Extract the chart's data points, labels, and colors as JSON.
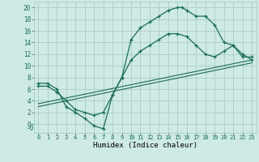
{
  "xlabel": "Humidex (Indice chaleur)",
  "bg_color": "#ceeae4",
  "grid_color": "#aaccC4",
  "line_color": "#1a6b5a",
  "xlim": [
    -0.5,
    23.5
  ],
  "ylim": [
    -1.5,
    21
  ],
  "xticks": [
    0,
    1,
    2,
    3,
    4,
    5,
    6,
    7,
    8,
    9,
    10,
    11,
    12,
    13,
    14,
    15,
    16,
    17,
    18,
    19,
    20,
    21,
    22,
    23
  ],
  "yticks": [
    0,
    2,
    4,
    6,
    8,
    10,
    12,
    14,
    16,
    18,
    20
  ],
  "ytick_labels": [
    "0",
    "2",
    "4",
    "6",
    "8",
    "10",
    "12",
    "14",
    "16",
    "18",
    "20"
  ],
  "curve1_x": [
    0,
    1,
    2,
    3,
    4,
    5,
    6,
    7,
    8,
    9,
    10,
    11,
    12,
    13,
    14,
    15,
    15.5,
    16,
    17,
    18,
    19,
    20,
    21,
    22,
    23
  ],
  "curve1_y": [
    7,
    7,
    6,
    3,
    2,
    1,
    -0.3,
    -0.8,
    5,
    8,
    14.5,
    16.5,
    17.5,
    18.5,
    19.5,
    20,
    20,
    19.5,
    18.5,
    18.5,
    17,
    14,
    13.5,
    12,
    11
  ],
  "curve2_x": [
    0,
    1,
    2,
    3,
    4,
    5,
    6,
    7,
    8,
    9,
    10,
    11,
    12,
    13,
    14,
    15,
    16,
    17,
    18,
    19,
    20,
    21,
    22,
    23
  ],
  "curve2_y": [
    6.5,
    6.5,
    5.5,
    4,
    2.5,
    2,
    1.5,
    2,
    5,
    8,
    11,
    12.5,
    13.5,
    14.5,
    15.5,
    15.5,
    15,
    13.5,
    12,
    11.5,
    12.5,
    13.5,
    11.5,
    11.5
  ],
  "line1_x": [
    0,
    23
  ],
  "line1_y": [
    3.5,
    11
  ],
  "line2_x": [
    0,
    23
  ],
  "line2_y": [
    3.0,
    10.5
  ],
  "marker": "+"
}
